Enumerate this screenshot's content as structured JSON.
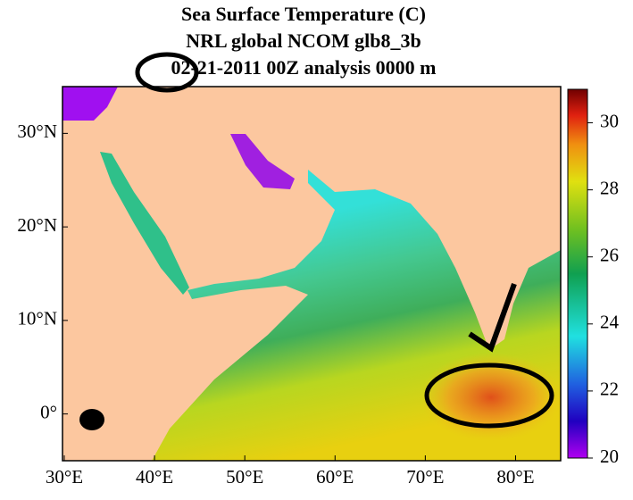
{
  "chart_data": {
    "type": "map",
    "title": [
      "Sea Surface Temperature (C)",
      "NRL global NCOM glb8_3b",
      "02-21-2011 00Z analysis   0000 m"
    ],
    "xlim": [
      30,
      85
    ],
    "ylim": [
      -5,
      35
    ],
    "xticks": [
      {
        "value": 30,
        "label": "30°E"
      },
      {
        "value": 40,
        "label": "40°E"
      },
      {
        "value": 50,
        "label": "50°E"
      },
      {
        "value": 60,
        "label": "60°E"
      },
      {
        "value": 70,
        "label": "70°E"
      },
      {
        "value": 80,
        "label": "80°E"
      }
    ],
    "yticks": [
      {
        "value": 0,
        "label": "0°"
      },
      {
        "value": 10,
        "label": "10°N"
      },
      {
        "value": 20,
        "label": "20°N"
      },
      {
        "value": 30,
        "label": "30°N"
      }
    ],
    "colorbar_lim": [
      20,
      31
    ],
    "colorbar_ticks": [
      20,
      22,
      24,
      26,
      28,
      30
    ]
  }
}
